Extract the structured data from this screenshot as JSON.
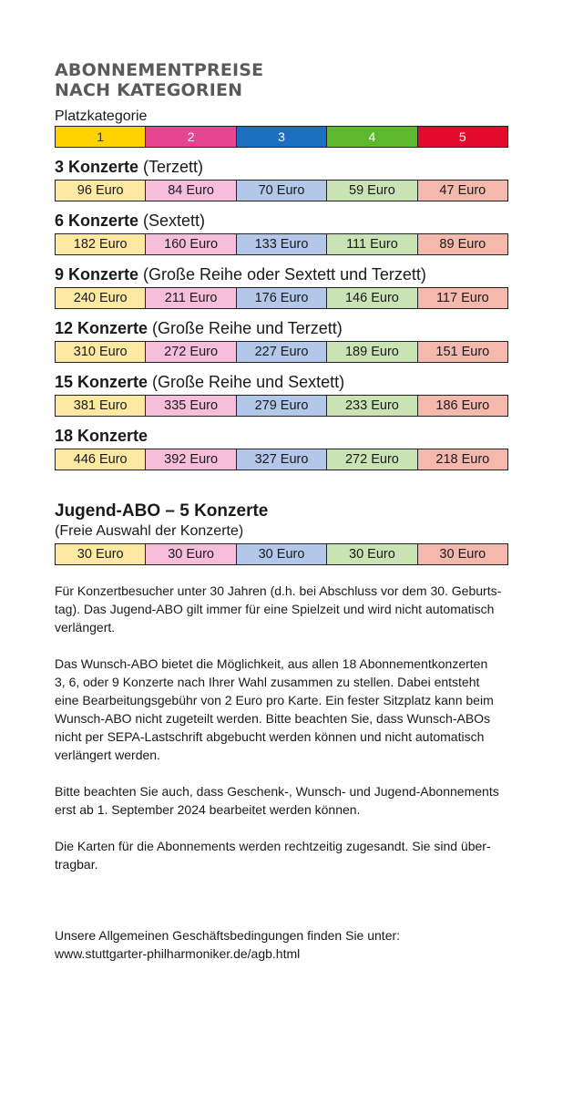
{
  "title": {
    "line1": "ABONNEMENTPREISE",
    "line2": "NACH KATEGORIEN"
  },
  "categories_label": "Platzkategorie",
  "categories": [
    "1",
    "2",
    "3",
    "4",
    "5"
  ],
  "colors": {
    "header": [
      "#ffd200",
      "#e5468f",
      "#1c6ec3",
      "#5eb82d",
      "#e40c2c"
    ],
    "price": [
      "#fde9a1",
      "#f7bedb",
      "#b3c7e8",
      "#c9e3b4",
      "#f5b8ac"
    ]
  },
  "sections": [
    {
      "title": "3 Konzerte",
      "subtitle": " (Terzett)",
      "prices": [
        "96 Euro",
        "84 Euro",
        "70 Euro",
        "59 Euro",
        "47 Euro"
      ]
    },
    {
      "title": "6 Konzerte",
      "subtitle": " (Sextett)",
      "prices": [
        "182 Euro",
        "160 Euro",
        "133 Euro",
        "111 Euro",
        "89 Euro"
      ]
    },
    {
      "title": "9 Konzerte",
      "subtitle": " (Große Reihe oder Sextett und Terzett)",
      "prices": [
        "240 Euro",
        "211 Euro",
        "176 Euro",
        "146 Euro",
        "117 Euro"
      ]
    },
    {
      "title": "12 Konzerte",
      "subtitle": " (Große Reihe und Terzett)",
      "prices": [
        "310 Euro",
        "272 Euro",
        "227 Euro",
        "189 Euro",
        "151 Euro"
      ]
    },
    {
      "title": "15 Konzerte",
      "subtitle": " (Große Reihe und Sextett)",
      "prices": [
        "381 Euro",
        "335 Euro",
        "279 Euro",
        "233 Euro",
        "186 Euro"
      ]
    },
    {
      "title": "18 Konzerte",
      "subtitle": "",
      "prices": [
        "446 Euro",
        "392 Euro",
        "327 Euro",
        "272 Euro",
        "218 Euro"
      ]
    }
  ],
  "jugend": {
    "title": "Jugend-ABO – 5 Konzerte",
    "subtitle": "(Freie Auswahl der Konzerte)",
    "prices": [
      "30 Euro",
      "30 Euro",
      "30 Euro",
      "30 Euro",
      "30 Euro"
    ]
  },
  "paragraphs": {
    "p1": [
      "Für Konzertbesucher unter 30 Jahren (d.h. bei Abschluss vor dem 30. Geburts-",
      "tag). Das Jugend-ABO gilt immer für eine Spielzeit und wird nicht automatisch",
      "verlängert."
    ],
    "p2": [
      "Das Wunsch-ABO bietet die Möglichkeit, aus allen 18 Abonnementkonzerten",
      "3, 6, oder 9 Konzerte nach Ihrer Wahl zusammen zu stellen. Dabei entsteht",
      "eine Bearbeitungsgebühr von 2 Euro pro Karte. Ein fester Sitzplatz kann beim",
      "Wunsch-ABO nicht zugeteilt werden. Bitte beachten Sie, dass Wunsch-ABOs",
      "nicht per SEPA-Lastschrift abgebucht werden können und nicht automatisch",
      "verlängert werden."
    ],
    "p3": [
      "Bitte beachten Sie auch, dass Geschenk-, Wunsch- und Jugend-Abonnements",
      "erst ab 1. September 2024 bearbeitet werden können."
    ],
    "p4": [
      "Die Karten für die Abonnements werden rechtzeitig zugesandt. Sie sind über-",
      "tragbar."
    ],
    "p5": [
      "Unsere Allgemeinen Geschäftsbedingungen finden Sie unter:",
      "www.stuttgarter-philharmoniker.de/agb.html"
    ]
  }
}
